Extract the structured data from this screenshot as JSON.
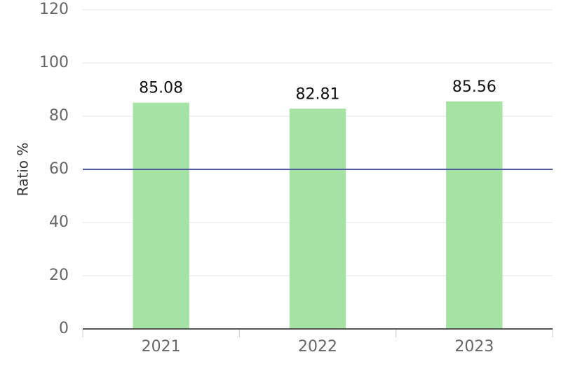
{
  "chart_data": {
    "type": "bar",
    "y_label": "Ratio %",
    "categories": [
      "2021",
      "2022",
      "2023"
    ],
    "values": [
      85.08,
      82.81,
      85.56
    ],
    "color": "#a5e3a5",
    "ylim": [
      0,
      120
    ],
    "yticks": [
      0,
      20,
      40,
      60,
      80,
      100,
      120
    ],
    "grid": true,
    "reference_line": {
      "value": 60,
      "color": "#4f5aa0"
    }
  }
}
